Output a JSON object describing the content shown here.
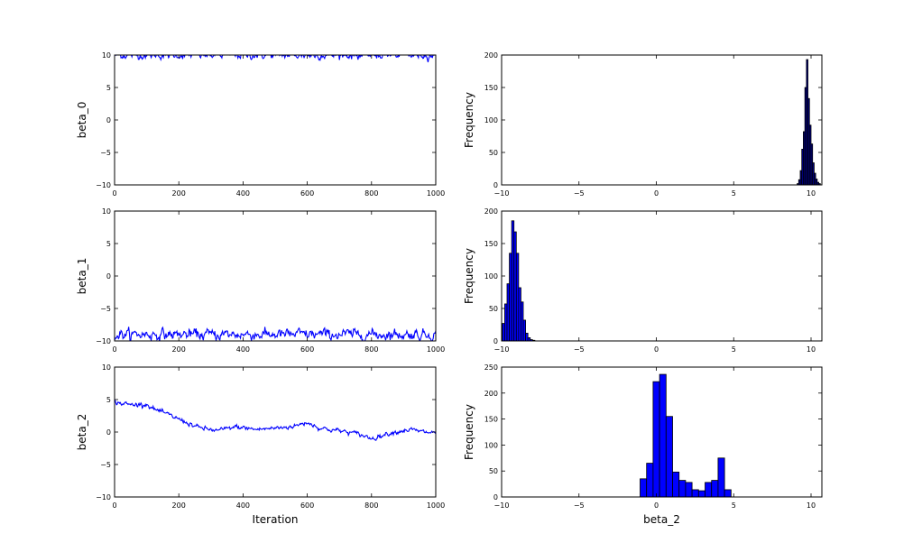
{
  "chart_data": [
    {
      "type": "line",
      "panel": "trace-beta_0",
      "ylabel": "beta_0",
      "xlabel": "",
      "xlim": [
        0,
        1000
      ],
      "ylim": [
        -10,
        10
      ],
      "xticks": [
        "0",
        "200",
        "400",
        "600",
        "800",
        "1000"
      ],
      "yticks": [
        "10",
        "5",
        "0",
        "−5",
        "−10"
      ],
      "color": "#0000ff",
      "series": [
        {
          "x": [
            0,
            1000
          ],
          "mean": 10.0,
          "sd": 0.25,
          "drift": [
            [
              0,
              10.0
            ],
            [
              1000,
              10.0
            ]
          ]
        }
      ]
    },
    {
      "type": "bar",
      "panel": "hist-beta_0",
      "ylabel": "Frequency",
      "xlabel": "",
      "xlim": [
        -10,
        10.7
      ],
      "ylim": [
        0,
        200
      ],
      "xticks": [
        "−10",
        "−5",
        "0",
        "5",
        "10"
      ],
      "yticks": [
        "200",
        "150",
        "100",
        "50",
        "0"
      ],
      "color": "#00008b",
      "bin_edges": [
        9.1,
        9.2,
        9.3,
        9.4,
        9.5,
        9.6,
        9.7,
        9.8,
        9.9,
        10.0,
        10.1,
        10.2,
        10.3,
        10.4,
        10.5,
        10.6
      ],
      "values": [
        2,
        8,
        22,
        55,
        82,
        150,
        193,
        133,
        92,
        63,
        34,
        18,
        9,
        4,
        2
      ]
    },
    {
      "type": "line",
      "panel": "trace-beta_1",
      "ylabel": "beta_1",
      "xlabel": "",
      "xlim": [
        0,
        1000
      ],
      "ylim": [
        -10,
        10
      ],
      "xticks": [
        "0",
        "200",
        "400",
        "600",
        "800",
        "1000"
      ],
      "yticks": [
        "10",
        "5",
        "0",
        "−5",
        "−10"
      ],
      "color": "#0000ff",
      "series": [
        {
          "x": [
            0,
            1000
          ],
          "mean": -9.0,
          "sd": 0.35,
          "drift": [
            [
              0,
              -9.0
            ],
            [
              1000,
              -9.0
            ]
          ]
        }
      ]
    },
    {
      "type": "bar",
      "panel": "hist-beta_1",
      "ylabel": "Frequency",
      "xlabel": "",
      "xlim": [
        -10,
        10.7
      ],
      "ylim": [
        0,
        200
      ],
      "xticks": [
        "−10",
        "−5",
        "0",
        "5",
        "10"
      ],
      "yticks": [
        "200",
        "150",
        "100",
        "50",
        "0"
      ],
      "color": "#0000ff",
      "bin_edges": [
        -10.1,
        -9.95,
        -9.8,
        -9.65,
        -9.5,
        -9.35,
        -9.2,
        -9.05,
        -8.9,
        -8.75,
        -8.6,
        -8.45,
        -8.3,
        -8.15,
        -8.0,
        -7.85
      ],
      "values": [
        8,
        27,
        57,
        88,
        135,
        185,
        168,
        135,
        82,
        60,
        32,
        12,
        5,
        2,
        1
      ]
    },
    {
      "type": "line",
      "panel": "trace-beta_2",
      "ylabel": "beta_2",
      "xlabel": "Iteration",
      "xlim": [
        0,
        1000
      ],
      "ylim": [
        -10,
        10
      ],
      "xticks": [
        "0",
        "200",
        "400",
        "600",
        "800",
        "1000"
      ],
      "yticks": [
        "10",
        "5",
        "0",
        "−5",
        "−10"
      ],
      "color": "#0000ff",
      "series": [
        {
          "x": [
            0,
            1000
          ],
          "mean": 0,
          "sd": 0.15,
          "drift": [
            [
              0,
              4.6
            ],
            [
              50,
              4.2
            ],
            [
              100,
              4.3
            ],
            [
              120,
              3.6
            ],
            [
              200,
              2.0
            ],
            [
              260,
              0.7
            ],
            [
              320,
              0.2
            ],
            [
              380,
              0.8
            ],
            [
              440,
              0.4
            ],
            [
              500,
              0.6
            ],
            [
              560,
              0.9
            ],
            [
              600,
              1.5
            ],
            [
              640,
              0.6
            ],
            [
              700,
              0.2
            ],
            [
              760,
              -0.3
            ],
            [
              800,
              -1.0
            ],
            [
              860,
              -0.1
            ],
            [
              920,
              0.4
            ],
            [
              960,
              0.0
            ],
            [
              1000,
              -0.1
            ]
          ]
        }
      ]
    },
    {
      "type": "bar",
      "panel": "hist-beta_2",
      "ylabel": "Frequency",
      "xlabel": "beta_2",
      "xlim": [
        -10,
        10.7
      ],
      "ylim": [
        0,
        250
      ],
      "xticks": [
        "−10",
        "−5",
        "0",
        "5",
        "10"
      ],
      "yticks": [
        "250",
        "200",
        "150",
        "100",
        "50",
        "0"
      ],
      "color": "#0000ff",
      "bin_edges": [
        -1.05,
        -0.63,
        -0.21,
        0.21,
        0.63,
        1.05,
        1.47,
        1.89,
        2.31,
        2.73,
        3.15,
        3.57,
        3.99,
        4.41,
        4.83
      ],
      "values": [
        35,
        65,
        222,
        236,
        155,
        48,
        32,
        28,
        14,
        12,
        28,
        32,
        75,
        14
      ]
    }
  ]
}
